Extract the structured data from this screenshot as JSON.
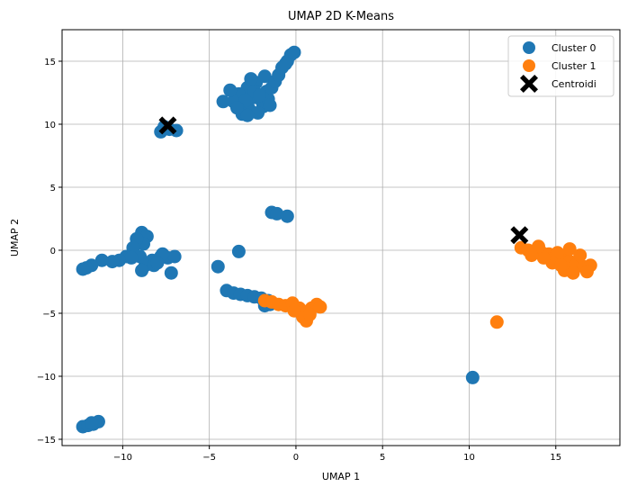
{
  "chart_data": {
    "type": "scatter",
    "title": "UMAP 2D K-Means",
    "xlabel": "UMAP 1",
    "ylabel": "UMAP 2",
    "xlim": [
      -13.5,
      18.7
    ],
    "ylim": [
      -15.5,
      17.5
    ],
    "xticks": [
      -10,
      -5,
      0,
      5,
      10,
      15
    ],
    "yticks": [
      -15,
      -10,
      -5,
      0,
      5,
      10,
      15
    ],
    "grid": true,
    "legend_position": "top-right",
    "series": [
      {
        "name": "Cluster 0",
        "color": "#1f77b4",
        "points": [
          [
            -2.8,
            12.9
          ],
          [
            -3.3,
            12.4
          ],
          [
            -2.5,
            12.1
          ],
          [
            -3.0,
            11.6
          ],
          [
            -2.0,
            11.9
          ],
          [
            -1.7,
            12.6
          ],
          [
            -2.3,
            13.3
          ],
          [
            -3.6,
            11.8
          ],
          [
            -2.7,
            11.2
          ],
          [
            -1.9,
            11.4
          ],
          [
            -2.2,
            10.9
          ],
          [
            -3.1,
            10.8
          ],
          [
            -1.6,
            12.0
          ],
          [
            -1.4,
            12.9
          ],
          [
            -2.6,
            13.6
          ],
          [
            -3.8,
            12.7
          ],
          [
            -4.2,
            11.8
          ],
          [
            -1.8,
            13.8
          ],
          [
            -1.2,
            13.4
          ],
          [
            -2.9,
            11.9
          ],
          [
            -2.4,
            12.6
          ],
          [
            -3.4,
            11.3
          ],
          [
            -1.5,
            11.5
          ],
          [
            -2.1,
            12.3
          ],
          [
            -2.8,
            10.7
          ],
          [
            -1.0,
            13.9
          ],
          [
            -0.8,
            14.5
          ],
          [
            -0.5,
            15.0
          ],
          [
            -0.3,
            15.5
          ],
          [
            -0.1,
            15.7
          ],
          [
            -0.6,
            14.8
          ],
          [
            -7.8,
            9.4
          ],
          [
            -7.3,
            9.6
          ],
          [
            -6.9,
            9.5
          ],
          [
            -7.6,
            9.8
          ],
          [
            -8.9,
            1.4
          ],
          [
            -8.6,
            1.1
          ],
          [
            -8.8,
            0.5
          ],
          [
            -9.2,
            0.9
          ],
          [
            -9.4,
            0.2
          ],
          [
            -9.0,
            -0.5
          ],
          [
            -8.3,
            -0.8
          ],
          [
            -7.8,
            -0.5
          ],
          [
            -7.4,
            -0.6
          ],
          [
            -7.0,
            -0.5
          ],
          [
            -9.8,
            -0.5
          ],
          [
            -9.5,
            -0.6
          ],
          [
            -8.7,
            -1.2
          ],
          [
            -8.2,
            -1.2
          ],
          [
            -8.9,
            -1.6
          ],
          [
            -7.7,
            -0.3
          ],
          [
            -10.2,
            -0.8
          ],
          [
            -10.6,
            -0.9
          ],
          [
            -11.2,
            -0.8
          ],
          [
            -7.2,
            -1.8
          ],
          [
            -11.8,
            -1.2
          ],
          [
            -12.1,
            -1.4
          ],
          [
            -12.3,
            -1.5
          ],
          [
            -8.0,
            -1.0
          ],
          [
            -1.4,
            3.0
          ],
          [
            -1.1,
            2.9
          ],
          [
            -0.5,
            2.7
          ],
          [
            -3.3,
            -0.1
          ],
          [
            -4.5,
            -1.3
          ],
          [
            -4.0,
            -3.2
          ],
          [
            -3.6,
            -3.4
          ],
          [
            -3.2,
            -3.5
          ],
          [
            -2.8,
            -3.6
          ],
          [
            -2.4,
            -3.7
          ],
          [
            -2.0,
            -3.8
          ],
          [
            -1.6,
            -4.0
          ],
          [
            -1.5,
            -4.3
          ],
          [
            -1.8,
            -4.4
          ],
          [
            -12.3,
            -14.0
          ],
          [
            -12.0,
            -13.9
          ],
          [
            -11.7,
            -13.8
          ],
          [
            -11.4,
            -13.6
          ],
          [
            -11.8,
            -13.7
          ],
          [
            10.2,
            -10.1
          ]
        ]
      },
      {
        "name": "Cluster 1",
        "color": "#ff7f0e",
        "points": [
          [
            13.0,
            0.2
          ],
          [
            13.4,
            0.0
          ],
          [
            13.8,
            -0.1
          ],
          [
            14.2,
            -0.2
          ],
          [
            14.6,
            -0.3
          ],
          [
            15.0,
            -0.5
          ],
          [
            15.4,
            -0.7
          ],
          [
            15.8,
            -0.9
          ],
          [
            16.2,
            -1.1
          ],
          [
            16.6,
            -1.3
          ],
          [
            17.0,
            -1.2
          ],
          [
            15.5,
            -1.6
          ],
          [
            16.0,
            -1.8
          ],
          [
            15.1,
            -0.2
          ],
          [
            15.8,
            0.1
          ],
          [
            16.4,
            -0.4
          ],
          [
            14.8,
            -1.0
          ],
          [
            14.3,
            -0.6
          ],
          [
            16.8,
            -1.7
          ],
          [
            15.3,
            -1.2
          ],
          [
            14.0,
            0.3
          ],
          [
            13.6,
            -0.4
          ],
          [
            11.6,
            -5.7
          ],
          [
            -1.8,
            -4.0
          ],
          [
            -1.4,
            -4.1
          ],
          [
            -1.0,
            -4.3
          ],
          [
            -0.6,
            -4.4
          ],
          [
            -0.2,
            -4.2
          ],
          [
            0.2,
            -4.6
          ],
          [
            0.6,
            -4.9
          ],
          [
            0.9,
            -4.6
          ],
          [
            1.2,
            -4.3
          ],
          [
            1.4,
            -4.5
          ],
          [
            0.4,
            -5.3
          ],
          [
            0.6,
            -5.6
          ],
          [
            0.3,
            -5.0
          ],
          [
            -0.1,
            -4.8
          ],
          [
            0.8,
            -5.1
          ]
        ]
      },
      {
        "name": "Centroidi",
        "color": "#000000",
        "marker": "X",
        "points": [
          [
            -7.4,
            9.9
          ],
          [
            12.9,
            1.2
          ]
        ]
      }
    ]
  }
}
